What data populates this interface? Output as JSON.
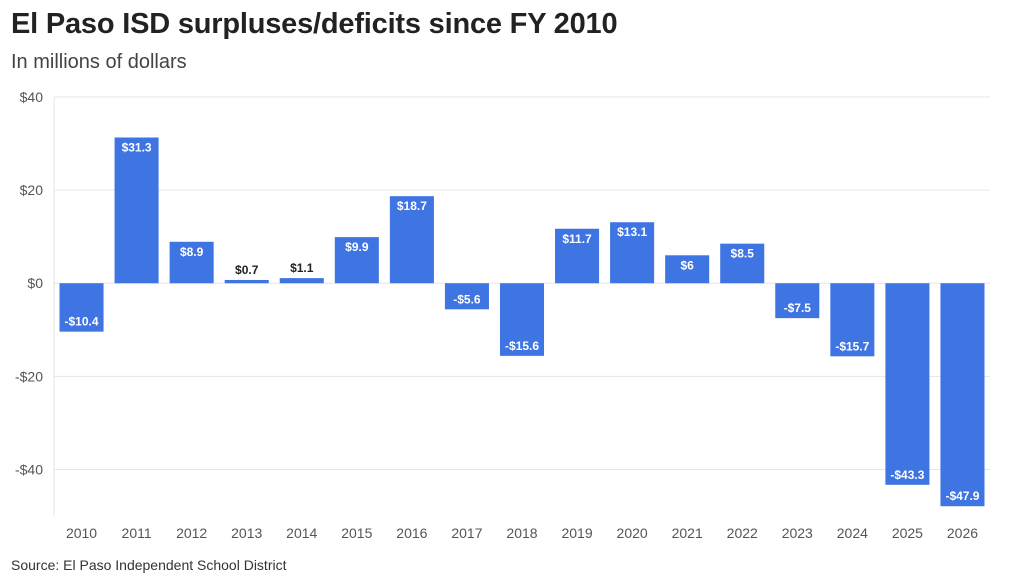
{
  "header": {
    "title": "El Paso ISD surpluses/deficits since FY 2010",
    "subtitle": "In millions of dollars"
  },
  "footer": {
    "source": "Source: El Paso Independent School District"
  },
  "colors": {
    "bar": "#3f74e3",
    "grid": "#e6e6e6",
    "label_inside": "#ffffff",
    "label_outside": "#222222"
  },
  "chart_data": {
    "type": "bar",
    "title": "El Paso ISD surpluses/deficits since FY 2010",
    "subtitle": "In millions of dollars",
    "xlabel": "",
    "ylabel": "",
    "categories": [
      "2010",
      "2011",
      "2012",
      "2013",
      "2014",
      "2015",
      "2016",
      "2017",
      "2018",
      "2019",
      "2020",
      "2021",
      "2022",
      "2023",
      "2024",
      "2025",
      "2026"
    ],
    "values": [
      -10.4,
      31.3,
      8.9,
      0.7,
      1.1,
      9.9,
      18.7,
      -5.6,
      -15.6,
      11.7,
      13.1,
      6,
      8.5,
      -7.5,
      -15.7,
      -43.3,
      -47.9
    ],
    "data_labels": [
      "-$10.4",
      "$31.3",
      "$8.9",
      "$0.7",
      "$1.1",
      "$9.9",
      "$18.7",
      "-$5.6",
      "-$15.6",
      "$11.7",
      "$13.1",
      "$6",
      "$8.5",
      "-$7.5",
      "-$15.7",
      "-$43.3",
      "-$47.9"
    ],
    "yticks": [
      40,
      20,
      0,
      -20,
      -40
    ],
    "ytick_labels": [
      "$40",
      "$20",
      "$0",
      "-$20",
      "-$40"
    ],
    "ylim": [
      -50,
      40
    ],
    "grid": true,
    "legend": "none"
  }
}
